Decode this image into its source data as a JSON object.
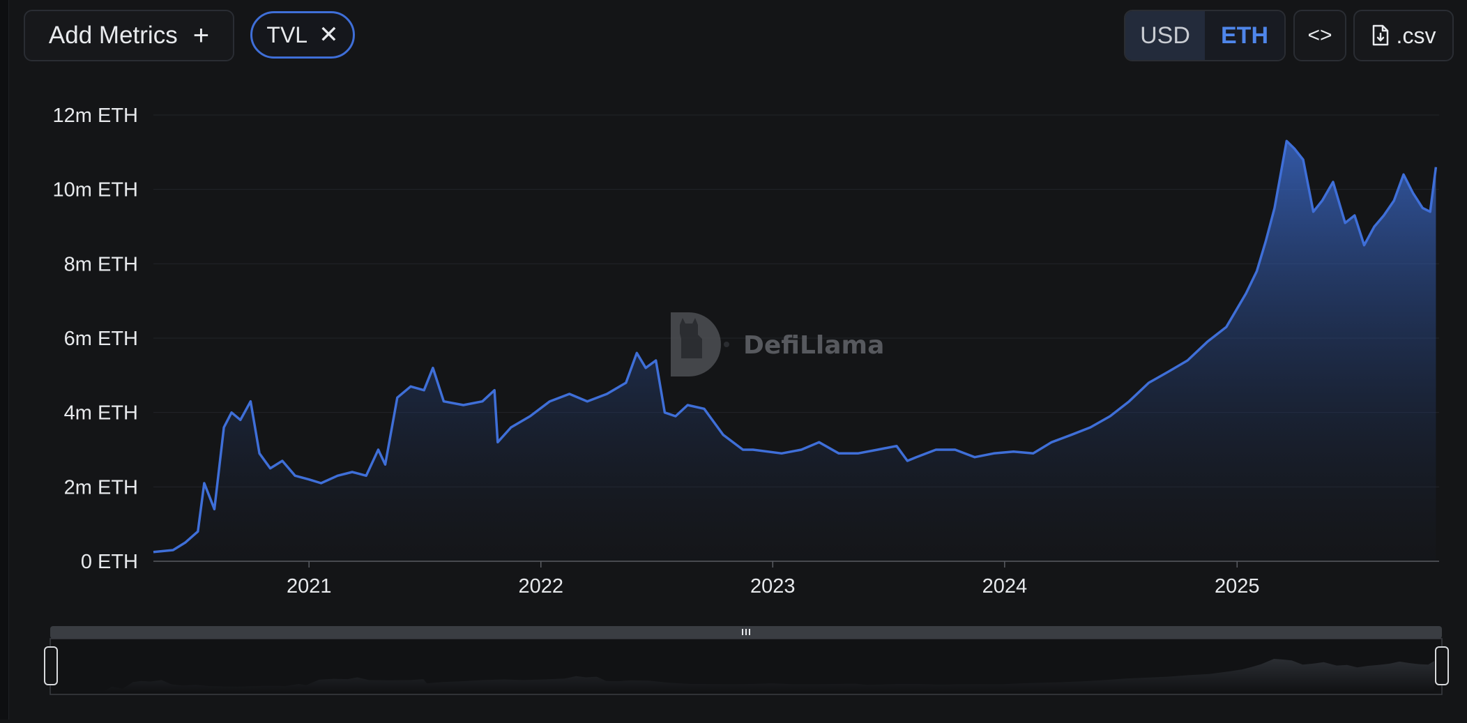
{
  "toolbar": {
    "add_metrics_label": "Add Metrics",
    "add_icon": "plus-icon",
    "metric_pill_label": "TVL",
    "remove_icon": "close-icon",
    "denominations": [
      "USD",
      "ETH"
    ],
    "selected_denomination": "ETH",
    "embed_icon": "code-brackets-icon",
    "embed_label": "<>",
    "csv_icon": "file-download-icon",
    "csv_label": ".csv"
  },
  "colors": {
    "background": "#141517",
    "line": "#3f6fd8",
    "accent": "#4f86ea"
  },
  "watermark": {
    "text": "DefiLlama",
    "icon": "llama-logo-icon"
  },
  "chart_data": {
    "type": "area",
    "title": "",
    "xlabel": "",
    "ylabel": "",
    "unit": "ETH",
    "ylim": [
      0,
      12000000
    ],
    "xlim": [
      "2020-05-01",
      "2025-11-15"
    ],
    "y_ticks": [
      "0 ETH",
      "2m ETH",
      "4m ETH",
      "6m ETH",
      "8m ETH",
      "10m ETH",
      "12m ETH"
    ],
    "x_ticks": [
      "2021",
      "2022",
      "2023",
      "2024",
      "2025"
    ],
    "grid": true,
    "legend": "none",
    "series": [
      {
        "values_unit": "millions of ETH",
        "x": [
          "2020-05-01",
          "2020-06-01",
          "2020-06-20",
          "2020-07-10",
          "2020-07-20",
          "2020-08-05",
          "2020-08-20",
          "2020-09-01",
          "2020-09-15",
          "2020-10-01",
          "2020-10-15",
          "2020-11-01",
          "2020-11-20",
          "2020-12-10",
          "2021-01-01",
          "2021-01-20",
          "2021-02-15",
          "2021-03-10",
          "2021-04-01",
          "2021-04-20",
          "2021-05-01",
          "2021-05-20",
          "2021-06-10",
          "2021-07-01",
          "2021-07-15",
          "2021-08-01",
          "2021-09-01",
          "2021-10-01",
          "2021-10-20",
          "2021-10-25",
          "2021-11-15",
          "2021-12-15",
          "2022-01-15",
          "2022-02-15",
          "2022-03-15",
          "2022-04-15",
          "2022-05-15",
          "2022-06-01",
          "2022-06-15",
          "2022-07-01",
          "2022-07-15",
          "2022-08-01",
          "2022-08-20",
          "2022-09-15",
          "2022-10-15",
          "2022-11-15",
          "2022-12-01",
          "2023-01-15",
          "2023-02-15",
          "2023-03-15",
          "2023-04-15",
          "2023-05-15",
          "2023-06-15",
          "2023-07-15",
          "2023-08-01",
          "2023-08-15",
          "2023-09-15",
          "2023-10-15",
          "2023-11-15",
          "2023-12-15",
          "2024-01-15",
          "2024-02-15",
          "2024-03-15",
          "2024-04-15",
          "2024-05-15",
          "2024-06-15",
          "2024-07-15",
          "2024-08-15",
          "2024-09-15",
          "2024-10-15",
          "2024-11-15",
          "2024-12-15",
          "2025-01-15",
          "2025-02-01",
          "2025-02-15",
          "2025-03-01",
          "2025-03-20",
          "2025-04-01",
          "2025-04-15",
          "2025-05-01",
          "2025-05-15",
          "2025-06-01",
          "2025-06-20",
          "2025-07-05",
          "2025-07-20",
          "2025-08-05",
          "2025-08-20",
          "2025-09-05",
          "2025-09-20",
          "2025-10-05",
          "2025-10-20",
          "2025-11-01",
          "2025-11-10"
        ],
        "values": [
          0.25,
          0.3,
          0.5,
          0.8,
          2.1,
          1.4,
          3.6,
          4.0,
          3.8,
          4.3,
          2.9,
          2.5,
          2.7,
          2.3,
          2.2,
          2.1,
          2.3,
          2.4,
          2.3,
          3.0,
          2.6,
          4.4,
          4.7,
          4.6,
          5.2,
          4.3,
          4.2,
          4.3,
          4.6,
          3.2,
          3.6,
          3.9,
          4.3,
          4.5,
          4.3,
          4.5,
          4.8,
          5.6,
          5.2,
          5.4,
          4.0,
          3.9,
          4.2,
          4.1,
          3.4,
          3.0,
          3.0,
          2.9,
          3.0,
          3.2,
          2.9,
          2.9,
          3.0,
          3.1,
          2.7,
          2.8,
          3.0,
          3.0,
          2.8,
          2.9,
          2.95,
          2.9,
          3.2,
          3.4,
          3.6,
          3.9,
          4.3,
          4.8,
          5.1,
          5.4,
          5.9,
          6.3,
          7.2,
          7.8,
          8.6,
          9.5,
          11.3,
          11.1,
          10.8,
          9.4,
          9.7,
          10.2,
          9.1,
          9.3,
          8.5,
          9.0,
          9.3,
          9.7,
          10.4,
          9.9,
          9.5,
          9.4,
          10.6
        ]
      }
    ]
  }
}
